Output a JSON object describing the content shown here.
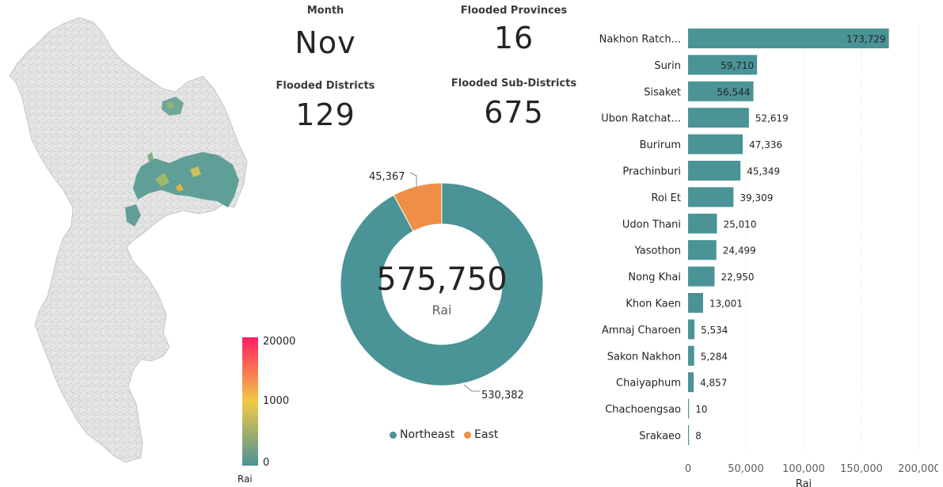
{
  "map": {
    "legend_ticks": [
      "20000",
      "1000",
      "0"
    ],
    "legend_unit": "Rai",
    "colors": {
      "high": "#ff1e63",
      "mid": "#f2c944",
      "low": "#4a9396",
      "base": "#e4e4e4"
    }
  },
  "kpis": {
    "month_label": "Month",
    "month_value": "Nov",
    "provinces_label": "Flooded Provinces",
    "provinces_value": "16",
    "districts_label": "Flooded Districts",
    "districts_value": "129",
    "subdistricts_label": "Flooded Sub-Districts",
    "subdistricts_value": "675"
  },
  "donut": {
    "center_value": "575,750",
    "center_unit": "Rai",
    "label_east": "45,367",
    "label_northeast": "530,382",
    "legend": [
      {
        "name": "Northeast",
        "color": "#4a9396"
      },
      {
        "name": "East",
        "color": "#ef8f47"
      }
    ]
  },
  "chart_data": [
    {
      "type": "pie",
      "categories": [
        "Northeast",
        "East"
      ],
      "values": [
        530382,
        45367
      ],
      "colors": [
        "#4a9396",
        "#ef8f47"
      ]
    },
    {
      "type": "bar",
      "orientation": "horizontal",
      "categories": [
        "Nakhon Ratch...",
        "Surin",
        "Sisaket",
        "Ubon Ratchat...",
        "Burirum",
        "Prachinburi",
        "Roi Et",
        "Udon Thani",
        "Yasothon",
        "Nong Khai",
        "Khon Kaen",
        "Amnaj Charoen",
        "Sakon Nakhon",
        "Chaiyaphum",
        "Chachoengsao",
        "Srakaeo"
      ],
      "values": [
        173729,
        59710,
        56544,
        52619,
        47336,
        45349,
        39309,
        25010,
        24499,
        22950,
        13001,
        5534,
        5284,
        4857,
        10,
        8
      ],
      "value_labels": [
        "173,729",
        "59,710",
        "56,544",
        "52,619",
        "47,336",
        "45,349",
        "39,309",
        "25,010",
        "24,499",
        "22,950",
        "13,001",
        "5,534",
        "5,284",
        "4,857",
        "10",
        "8"
      ],
      "xticks": [
        "0",
        "50,000",
        "100,000",
        "150,000",
        "200,000"
      ],
      "xlim": [
        0,
        200000
      ],
      "xlabel": "Rai",
      "bar_color": "#4a9396"
    }
  ]
}
